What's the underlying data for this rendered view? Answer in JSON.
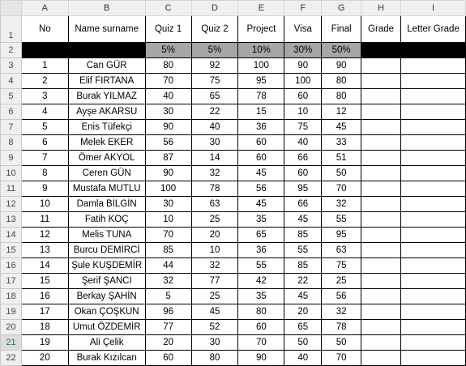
{
  "columns": [
    "A",
    "B",
    "C",
    "D",
    "E",
    "F",
    "G",
    "H",
    "I"
  ],
  "header": [
    "No",
    "Name surname",
    "Quiz 1",
    "Quiz 2",
    "Project",
    "Visa",
    "Final",
    "Grade",
    "Letter Grade"
  ],
  "weights": [
    "",
    "",
    "5%",
    "5%",
    "10%",
    "30%",
    "50%",
    "",
    ""
  ],
  "rows": [
    [
      "1",
      "Can GÜR",
      "80",
      "92",
      "100",
      "90",
      "90"
    ],
    [
      "2",
      "Elif FIRTANA",
      "70",
      "75",
      "95",
      "100",
      "80"
    ],
    [
      "3",
      "Burak YILMAZ",
      "40",
      "65",
      "78",
      "60",
      "80"
    ],
    [
      "4",
      "Ayşe AKARSU",
      "30",
      "22",
      "15",
      "10",
      "12"
    ],
    [
      "5",
      "Enis Tüfekçi",
      "90",
      "40",
      "36",
      "75",
      "45"
    ],
    [
      "6",
      "Melek EKER",
      "56",
      "30",
      "60",
      "40",
      "33"
    ],
    [
      "7",
      "Ömer AKYOL",
      "87",
      "14",
      "60",
      "66",
      "51"
    ],
    [
      "8",
      "Ceren GÜN",
      "90",
      "32",
      "45",
      "60",
      "50"
    ],
    [
      "9",
      "Mustafa MUTLU",
      "100",
      "78",
      "56",
      "95",
      "70"
    ],
    [
      "10",
      "Damla BİLGİN",
      "30",
      "63",
      "45",
      "66",
      "32"
    ],
    [
      "11",
      "Fatih KOÇ",
      "10",
      "25",
      "35",
      "45",
      "55"
    ],
    [
      "12",
      "Melis TUNA",
      "70",
      "20",
      "65",
      "85",
      "95"
    ],
    [
      "13",
      "Burcu DEMİRCİ",
      "85",
      "10",
      "36",
      "55",
      "63"
    ],
    [
      "14",
      "Şule KUŞDEMİR",
      "44",
      "32",
      "55",
      "85",
      "75"
    ],
    [
      "15",
      "Şerif ŞANCI",
      "32",
      "77",
      "42",
      "22",
      "25"
    ],
    [
      "16",
      "Berkay ŞAHİN",
      "5",
      "25",
      "35",
      "45",
      "56"
    ],
    [
      "17",
      "Okan ÇOŞKUN",
      "96",
      "45",
      "80",
      "20",
      "32"
    ],
    [
      "18",
      "Umut ÖZDEMİR",
      "77",
      "52",
      "60",
      "65",
      "78"
    ],
    [
      "19",
      "Ali Çelik",
      "20",
      "30",
      "70",
      "50",
      "50"
    ],
    [
      "20",
      "Burak Kızılcan",
      "60",
      "80",
      "90",
      "40",
      "70"
    ]
  ],
  "row_numbers": [
    "1",
    "2",
    "3",
    "4",
    "5",
    "6",
    "7",
    "8",
    "9",
    "10",
    "11",
    "12",
    "13",
    "14",
    "15",
    "16",
    "17",
    "18",
    "19",
    "20",
    "21",
    "22"
  ]
}
